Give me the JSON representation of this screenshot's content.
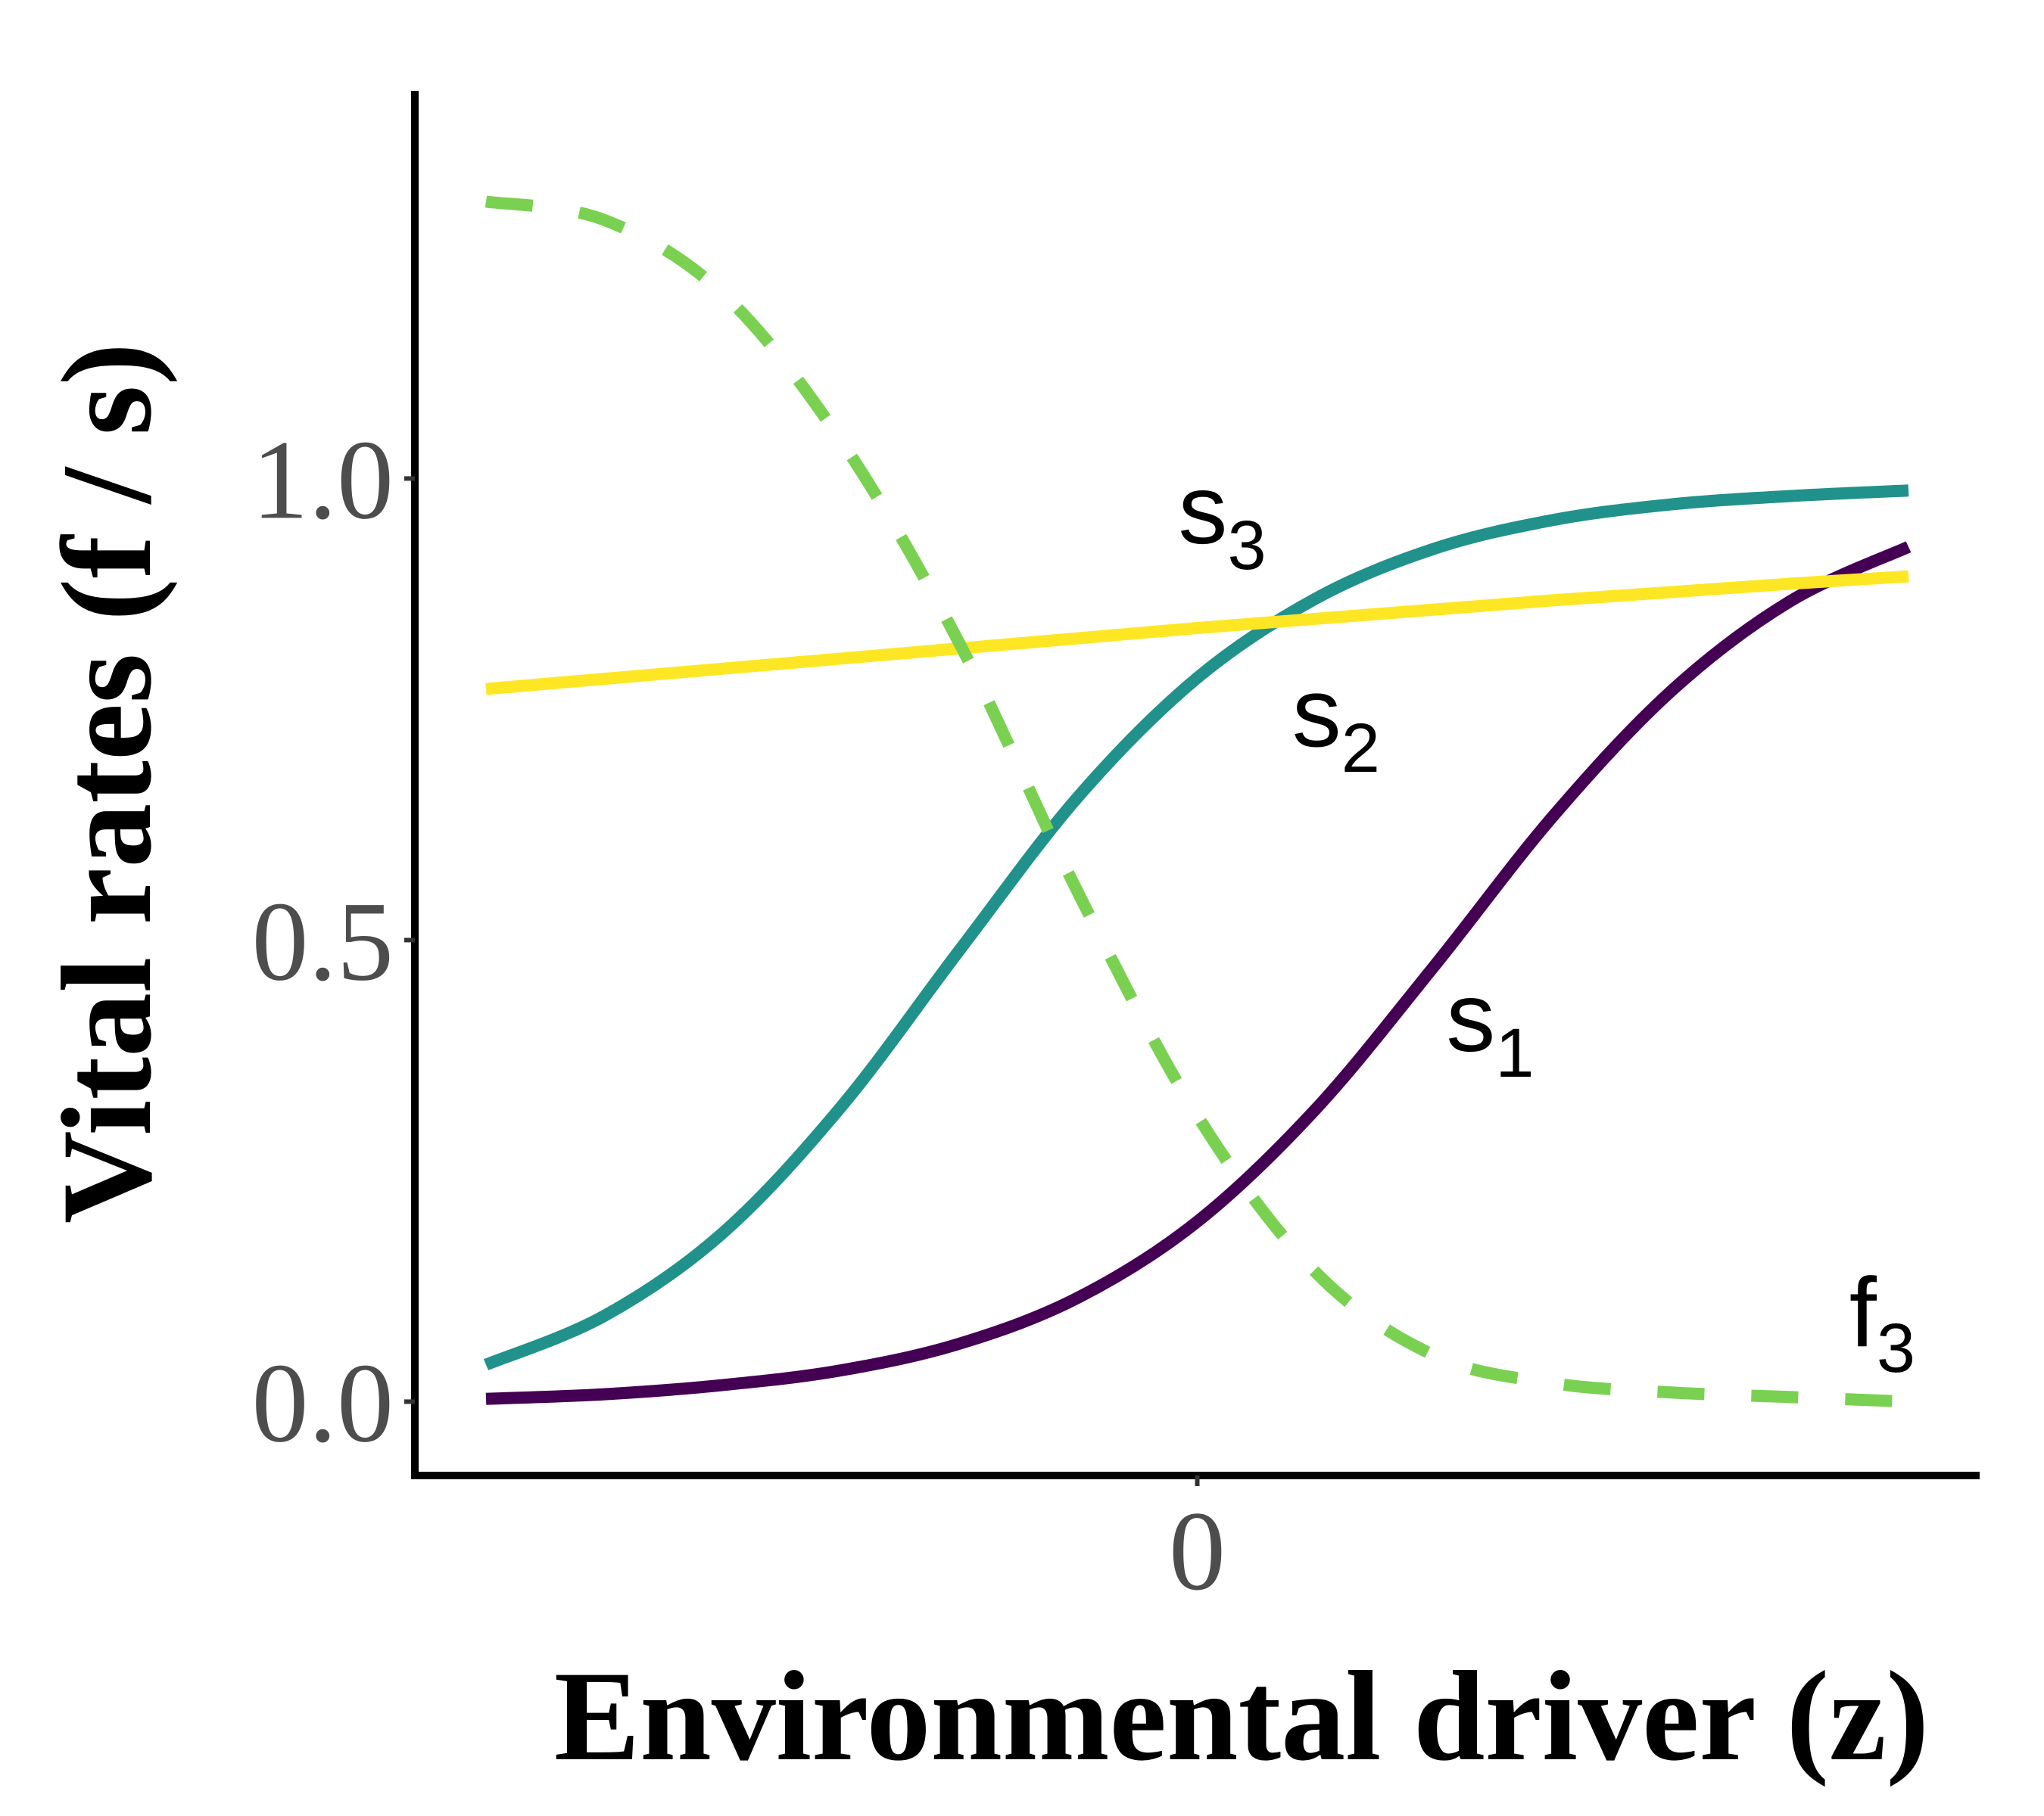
{
  "chart_data": {
    "type": "line",
    "title": "",
    "xlabel": "Environmental driver (z)",
    "ylabel": "Vital rates (f / s)",
    "xlim": [
      -3.3,
      3.3
    ],
    "ylim": [
      -0.08,
      1.42
    ],
    "x_ticks": [
      {
        "value": 0,
        "label": "0"
      }
    ],
    "y_ticks": [
      {
        "value": 0.0,
        "label": "0.0"
      },
      {
        "value": 0.5,
        "label": "0.5"
      },
      {
        "value": 1.0,
        "label": "1.0"
      }
    ],
    "grid": false,
    "legend": "none",
    "x": [
      -3.0,
      -2.5,
      -2.0,
      -1.5,
      -1.0,
      -0.5,
      0.0,
      0.5,
      1.0,
      1.5,
      2.0,
      2.5,
      3.0
    ],
    "series": [
      {
        "id": "s1",
        "name": "s",
        "subscript": "1",
        "color": "#440154",
        "dash": false,
        "values": [
          0.003,
          0.008,
          0.018,
          0.034,
          0.063,
          0.113,
          0.195,
          0.317,
          0.472,
          0.634,
          0.77,
          0.867,
          0.926
        ],
        "label_at": [
          1.05,
          0.38
        ]
      },
      {
        "id": "s2",
        "name": "s",
        "subscript": "2",
        "color": "#21918c",
        "dash": false,
        "values": [
          0.04,
          0.093,
          0.183,
          0.32,
          0.49,
          0.656,
          0.784,
          0.87,
          0.924,
          0.955,
          0.972,
          0.981,
          0.987
        ],
        "label_at": [
          0.4,
          0.71
        ]
      },
      {
        "id": "s3",
        "name": "s",
        "subscript": "3",
        "color": "#fde725",
        "dash": false,
        "values": [
          0.772,
          0.783,
          0.794,
          0.805,
          0.816,
          0.827,
          0.838,
          0.848,
          0.858,
          0.868,
          0.877,
          0.886,
          0.894
        ],
        "label_at": [
          -0.08,
          0.93
        ]
      },
      {
        "id": "f3",
        "name": "f",
        "subscript": "3",
        "color": "#7ad151",
        "dash": true,
        "values": [
          1.3,
          1.28,
          1.2,
          1.04,
          0.82,
          0.55,
          0.31,
          0.14,
          0.05,
          0.02,
          0.01,
          0.005,
          0.0
        ],
        "label_at": [
          2.75,
          0.06
        ]
      }
    ]
  }
}
